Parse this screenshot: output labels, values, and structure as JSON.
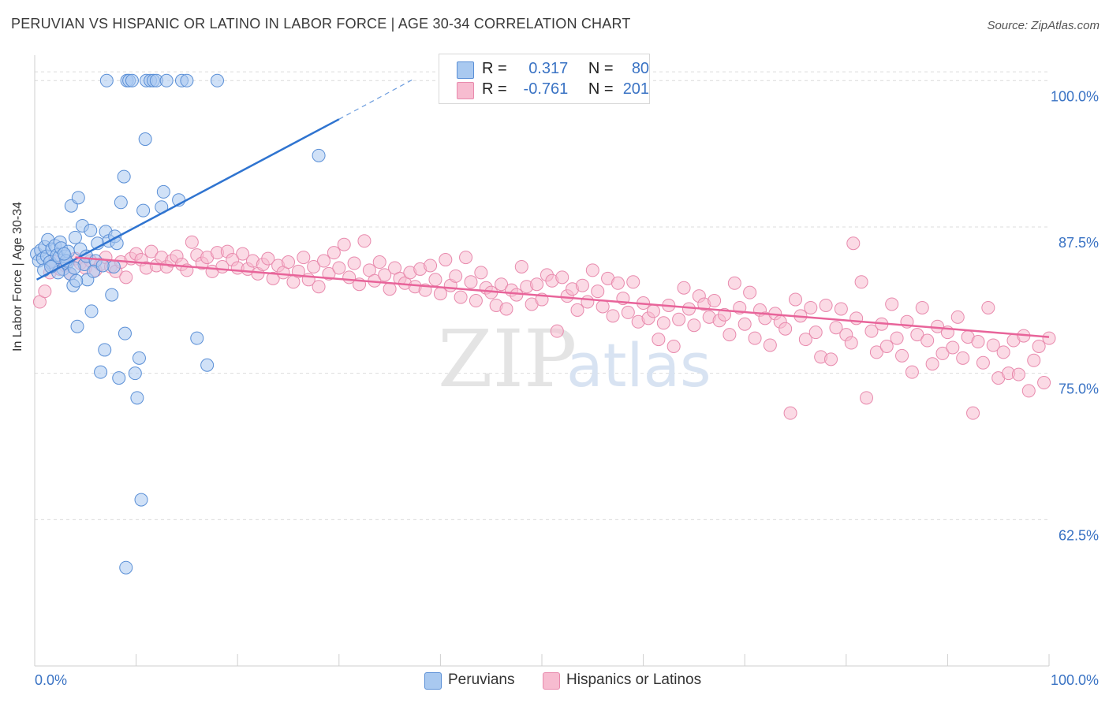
{
  "title": "PERUVIAN VS HISPANIC OR LATINO IN LABOR FORCE | AGE 30-34 CORRELATION CHART",
  "source": "Source: ZipAtlas.com",
  "watermark": {
    "zip": "ZIP",
    "atlas": "atlas"
  },
  "colors": {
    "peruvian_fill": "#a9c9f0",
    "peruvian_stroke": "#5a8fd6",
    "peruvian_line": "#2f74d0",
    "hispanic_fill": "#f7bcd0",
    "hispanic_stroke": "#e88aad",
    "hispanic_line": "#e8649a",
    "tick_label": "#3a73c4",
    "grid": "#dcdcdc"
  },
  "stats": {
    "peruvians": {
      "r_label": "R =",
      "r_value": "0.317",
      "n_label": "N =",
      "n_value": "80"
    },
    "hispanics": {
      "r_label": "R =",
      "r_value": "-0.761",
      "n_label": "N =",
      "n_value": "201"
    }
  },
  "legend": {
    "peruvians": "Peruvians",
    "hispanics": "Hispanics or Latinos"
  },
  "chart_data": {
    "type": "scatter",
    "title": "PERUVIAN VS HISPANIC OR LATINO IN LABOR FORCE | AGE 30-34 CORRELATION CHART",
    "xlabel": "",
    "ylabel": "In Labor Force | Age 30-34",
    "xlim": [
      0,
      100
    ],
    "ylim": [
      50,
      101.5
    ],
    "x_tick_labels": [
      "0.0%",
      "100.0%"
    ],
    "y_ticks": [
      62.5,
      75.0,
      87.5,
      100.0
    ],
    "y_tick_labels": [
      "62.5%",
      "75.0%",
      "87.5%",
      "100.0%"
    ],
    "grid": true,
    "legend_position": "bottom-center",
    "series": [
      {
        "name": "Peruvians",
        "trend": {
          "x": [
            0.2,
            30
          ],
          "y": [
            83.0,
            96.7
          ],
          "dashed_to": {
            "x": 37.5,
            "y": 100.2
          }
        },
        "points": [
          [
            0.2,
            85.2
          ],
          [
            0.4,
            84.6
          ],
          [
            0.6,
            85.5
          ],
          [
            0.8,
            84.8
          ],
          [
            1.0,
            85.8
          ],
          [
            1.2,
            85.0
          ],
          [
            1.3,
            86.4
          ],
          [
            1.5,
            84.5
          ],
          [
            1.7,
            85.6
          ],
          [
            1.8,
            84.2
          ],
          [
            2.0,
            85.9
          ],
          [
            2.2,
            85.1
          ],
          [
            2.4,
            84.9
          ],
          [
            2.5,
            86.2
          ],
          [
            2.6,
            85.7
          ],
          [
            2.8,
            83.9
          ],
          [
            3.0,
            85.0
          ],
          [
            3.2,
            84.4
          ],
          [
            3.3,
            85.4
          ],
          [
            3.5,
            83.5
          ],
          [
            3.6,
            89.3
          ],
          [
            3.8,
            82.5
          ],
          [
            4.0,
            86.6
          ],
          [
            4.2,
            79.0
          ],
          [
            4.3,
            90.0
          ],
          [
            4.5,
            85.6
          ],
          [
            4.7,
            87.6
          ],
          [
            4.9,
            84.3
          ],
          [
            5.1,
            85.0
          ],
          [
            5.2,
            83.0
          ],
          [
            5.5,
            87.2
          ],
          [
            5.6,
            80.3
          ],
          [
            6.0,
            84.6
          ],
          [
            6.2,
            86.1
          ],
          [
            6.5,
            75.1
          ],
          [
            6.9,
            77.0
          ],
          [
            7.0,
            87.1
          ],
          [
            7.3,
            86.3
          ],
          [
            7.6,
            81.7
          ],
          [
            7.8,
            84.1
          ],
          [
            7.9,
            86.7
          ],
          [
            8.1,
            86.1
          ],
          [
            8.3,
            74.6
          ],
          [
            8.5,
            89.6
          ],
          [
            8.8,
            91.8
          ],
          [
            8.9,
            78.4
          ],
          [
            9.0,
            58.4
          ],
          [
            9.1,
            100.0
          ],
          [
            9.3,
            100.0
          ],
          [
            9.6,
            100.0
          ],
          [
            9.9,
            75.0
          ],
          [
            10.1,
            72.9
          ],
          [
            10.3,
            76.3
          ],
          [
            10.5,
            64.2
          ],
          [
            10.7,
            88.9
          ],
          [
            11.0,
            100.0
          ],
          [
            11.4,
            100.0
          ],
          [
            11.7,
            100.0
          ],
          [
            12.0,
            100.0
          ],
          [
            12.5,
            89.2
          ],
          [
            12.7,
            90.5
          ],
          [
            13.0,
            100.0
          ],
          [
            14.2,
            89.8
          ],
          [
            14.5,
            100.0
          ],
          [
            15.0,
            100.0
          ],
          [
            16.0,
            78.0
          ],
          [
            17.0,
            75.7
          ],
          [
            18.0,
            100.0
          ],
          [
            28.0,
            93.6
          ],
          [
            0.9,
            83.8
          ],
          [
            2.3,
            83.6
          ],
          [
            3.1,
            84.6
          ],
          [
            5.8,
            83.7
          ],
          [
            6.7,
            84.2
          ],
          [
            7.1,
            100.0
          ],
          [
            10.9,
            95.0
          ],
          [
            4.1,
            82.9
          ],
          [
            1.6,
            84.1
          ],
          [
            2.9,
            85.2
          ],
          [
            3.9,
            84.0
          ]
        ]
      },
      {
        "name": "Hispanics or Latinos",
        "trend": {
          "x": [
            4.0,
            100
          ],
          "y": [
            84.9,
            78.1
          ]
        },
        "points": [
          [
            0.5,
            81.1
          ],
          [
            1.0,
            82.0
          ],
          [
            1.5,
            83.6
          ],
          [
            2.0,
            84.5
          ],
          [
            2.5,
            83.9
          ],
          [
            3.0,
            84.2
          ],
          [
            3.5,
            83.5
          ],
          [
            4.0,
            84.8
          ],
          [
            4.5,
            84.4
          ],
          [
            5.0,
            84.0
          ],
          [
            5.5,
            84.6
          ],
          [
            6.0,
            83.8
          ],
          [
            6.5,
            84.3
          ],
          [
            7.0,
            84.9
          ],
          [
            7.5,
            84.1
          ],
          [
            8.0,
            83.7
          ],
          [
            8.5,
            84.5
          ],
          [
            9.0,
            83.2
          ],
          [
            9.5,
            84.8
          ],
          [
            10.0,
            85.2
          ],
          [
            10.5,
            84.7
          ],
          [
            11.0,
            84.0
          ],
          [
            11.5,
            85.4
          ],
          [
            12.0,
            84.2
          ],
          [
            12.5,
            84.9
          ],
          [
            13.0,
            84.1
          ],
          [
            13.5,
            84.6
          ],
          [
            14.0,
            85.0
          ],
          [
            14.5,
            84.3
          ],
          [
            15.0,
            83.8
          ],
          [
            15.5,
            86.2
          ],
          [
            16.0,
            85.1
          ],
          [
            16.5,
            84.4
          ],
          [
            17.0,
            84.9
          ],
          [
            17.5,
            83.7
          ],
          [
            18.0,
            85.3
          ],
          [
            18.5,
            84.1
          ],
          [
            19.0,
            85.4
          ],
          [
            19.5,
            84.7
          ],
          [
            20.0,
            84.0
          ],
          [
            20.5,
            85.2
          ],
          [
            21.0,
            83.9
          ],
          [
            21.5,
            84.6
          ],
          [
            22.0,
            83.5
          ],
          [
            22.5,
            84.3
          ],
          [
            23.0,
            84.8
          ],
          [
            23.5,
            83.1
          ],
          [
            24.0,
            84.2
          ],
          [
            24.5,
            83.6
          ],
          [
            25.0,
            84.5
          ],
          [
            25.5,
            82.8
          ],
          [
            26.0,
            83.7
          ],
          [
            26.5,
            84.9
          ],
          [
            27.0,
            83.0
          ],
          [
            27.5,
            84.1
          ],
          [
            28.0,
            82.4
          ],
          [
            28.5,
            84.6
          ],
          [
            29.0,
            83.5
          ],
          [
            29.5,
            85.3
          ],
          [
            30.0,
            84.0
          ],
          [
            30.5,
            86.0
          ],
          [
            31.0,
            83.2
          ],
          [
            31.5,
            84.4
          ],
          [
            32.0,
            82.6
          ],
          [
            32.5,
            86.3
          ],
          [
            33.0,
            83.8
          ],
          [
            33.5,
            82.9
          ],
          [
            34.0,
            84.5
          ],
          [
            34.5,
            83.4
          ],
          [
            35.0,
            82.2
          ],
          [
            35.5,
            84.0
          ],
          [
            36.0,
            83.1
          ],
          [
            36.5,
            82.7
          ],
          [
            37.0,
            83.6
          ],
          [
            37.5,
            82.4
          ],
          [
            38.0,
            83.9
          ],
          [
            38.5,
            82.1
          ],
          [
            39.0,
            84.2
          ],
          [
            39.5,
            83.0
          ],
          [
            40.0,
            81.8
          ],
          [
            40.5,
            84.7
          ],
          [
            41.0,
            82.5
          ],
          [
            41.5,
            83.3
          ],
          [
            42.0,
            81.5
          ],
          [
            42.5,
            84.9
          ],
          [
            43.0,
            82.8
          ],
          [
            43.5,
            81.2
          ],
          [
            44.0,
            83.6
          ],
          [
            44.5,
            82.3
          ],
          [
            45.0,
            81.9
          ],
          [
            45.5,
            80.8
          ],
          [
            46.0,
            82.6
          ],
          [
            46.5,
            80.5
          ],
          [
            47.0,
            82.1
          ],
          [
            47.5,
            81.7
          ],
          [
            48.0,
            84.1
          ],
          [
            48.5,
            82.4
          ],
          [
            49.0,
            80.9
          ],
          [
            49.5,
            82.6
          ],
          [
            50.0,
            81.3
          ],
          [
            50.5,
            83.4
          ],
          [
            51.0,
            82.9
          ],
          [
            51.5,
            78.6
          ],
          [
            52.0,
            83.2
          ],
          [
            52.5,
            81.6
          ],
          [
            53.0,
            82.2
          ],
          [
            53.5,
            80.4
          ],
          [
            54.0,
            82.5
          ],
          [
            54.5,
            81.1
          ],
          [
            55.0,
            83.8
          ],
          [
            55.5,
            82.0
          ],
          [
            56.0,
            80.7
          ],
          [
            56.5,
            83.1
          ],
          [
            57.0,
            79.9
          ],
          [
            57.5,
            82.7
          ],
          [
            58.0,
            81.4
          ],
          [
            58.5,
            80.2
          ],
          [
            59.0,
            82.8
          ],
          [
            59.5,
            79.4
          ],
          [
            60.0,
            81.0
          ],
          [
            60.5,
            79.7
          ],
          [
            61.0,
            80.3
          ],
          [
            61.5,
            77.9
          ],
          [
            62.0,
            79.3
          ],
          [
            62.5,
            80.8
          ],
          [
            63.0,
            77.3
          ],
          [
            63.5,
            79.6
          ],
          [
            64.0,
            82.3
          ],
          [
            64.5,
            80.5
          ],
          [
            65.0,
            79.1
          ],
          [
            65.5,
            81.6
          ],
          [
            66.0,
            80.9
          ],
          [
            66.5,
            79.8
          ],
          [
            67.0,
            81.2
          ],
          [
            67.5,
            79.5
          ],
          [
            68.0,
            80.0
          ],
          [
            68.5,
            78.3
          ],
          [
            69.0,
            82.7
          ],
          [
            69.5,
            80.6
          ],
          [
            70.0,
            79.2
          ],
          [
            70.5,
            81.9
          ],
          [
            71.0,
            78.0
          ],
          [
            71.5,
            80.4
          ],
          [
            72.0,
            79.7
          ],
          [
            72.5,
            77.4
          ],
          [
            73.0,
            80.1
          ],
          [
            73.5,
            79.4
          ],
          [
            74.0,
            78.8
          ],
          [
            74.5,
            71.6
          ],
          [
            75.0,
            81.3
          ],
          [
            75.5,
            79.9
          ],
          [
            76.0,
            77.9
          ],
          [
            76.5,
            80.6
          ],
          [
            77.0,
            78.5
          ],
          [
            77.5,
            76.4
          ],
          [
            78.0,
            80.8
          ],
          [
            78.5,
            76.2
          ],
          [
            79.0,
            78.9
          ],
          [
            79.5,
            80.5
          ],
          [
            80.0,
            78.3
          ],
          [
            80.5,
            77.6
          ],
          [
            81.0,
            79.7
          ],
          [
            81.5,
            82.8
          ],
          [
            82.0,
            72.9
          ],
          [
            82.5,
            78.6
          ],
          [
            83.0,
            76.8
          ],
          [
            83.5,
            79.2
          ],
          [
            84.0,
            77.3
          ],
          [
            84.5,
            80.9
          ],
          [
            85.0,
            78.0
          ],
          [
            85.5,
            76.5
          ],
          [
            86.0,
            79.4
          ],
          [
            86.5,
            75.1
          ],
          [
            87.0,
            78.3
          ],
          [
            87.5,
            80.6
          ],
          [
            88.0,
            77.8
          ],
          [
            88.5,
            75.8
          ],
          [
            89.0,
            79.0
          ],
          [
            89.5,
            76.7
          ],
          [
            90.0,
            78.5
          ],
          [
            90.5,
            77.2
          ],
          [
            91.0,
            79.8
          ],
          [
            91.5,
            76.3
          ],
          [
            92.0,
            78.1
          ],
          [
            92.5,
            71.6
          ],
          [
            93.0,
            77.7
          ],
          [
            93.5,
            75.9
          ],
          [
            94.0,
            80.6
          ],
          [
            94.5,
            77.4
          ],
          [
            95.0,
            74.6
          ],
          [
            95.5,
            76.8
          ],
          [
            96.0,
            75.0
          ],
          [
            96.5,
            77.8
          ],
          [
            97.0,
            74.9
          ],
          [
            97.5,
            78.2
          ],
          [
            98.0,
            73.5
          ],
          [
            98.5,
            76.1
          ],
          [
            99.0,
            77.3
          ],
          [
            99.5,
            74.2
          ],
          [
            100.0,
            78.0
          ],
          [
            80.7,
            86.1
          ]
        ]
      }
    ]
  }
}
